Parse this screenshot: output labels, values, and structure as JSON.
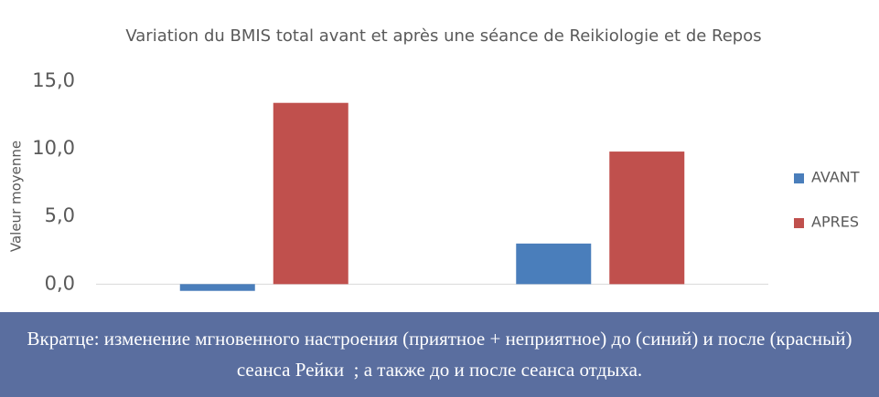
{
  "chart_data": {
    "type": "bar",
    "title": "Variation du BMIS total avant et après une séance de Reikiologie et de Repos",
    "y_label": "Valeur moyenne",
    "categories": [
      null,
      null
    ],
    "series": [
      {
        "name": "AVANT",
        "color": "#4a7ebb",
        "values": [
          -0.5,
          3.0
        ]
      },
      {
        "name": "APRES",
        "color": "#c0504d",
        "values": [
          13.4,
          9.8
        ]
      }
    ],
    "ylim": [
      -1.8,
      15.0
    ],
    "yticks": [
      {
        "value": 0,
        "label": "0,0"
      },
      {
        "value": 5,
        "label": "5,0"
      },
      {
        "value": 10,
        "label": "10,0"
      },
      {
        "value": 15,
        "label": "15,0"
      }
    ],
    "grid": false,
    "legend": "right"
  },
  "caption": "Вкратце: изменение мгновенного настроения (приятное + неприятное) до (синий) и после (красный) сеанса Рейки  ; а также до и после сеанса отдыха."
}
